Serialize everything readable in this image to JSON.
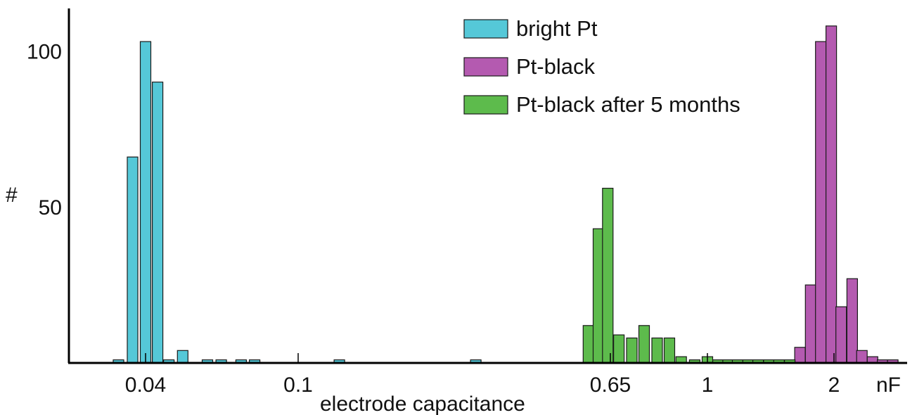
{
  "chart_data": {
    "type": "bar",
    "title": "",
    "xlabel": "electrode capacitance",
    "ylabel": "#",
    "x_unit": "nF",
    "x_scale": "log",
    "y_ticks": [
      50,
      100
    ],
    "ylim": [
      0,
      110
    ],
    "x_ticks": [
      {
        "value": 0.04,
        "label": "0.04"
      },
      {
        "value": 0.1,
        "label": "0.1"
      },
      {
        "value": 0.65,
        "label": "0.65"
      },
      {
        "value": 1,
        "label": "1"
      },
      {
        "value": 2,
        "label": "2"
      }
    ],
    "legend_position": "top-right",
    "grid": false,
    "series": [
      {
        "name": "bright Pt",
        "color": "#55c8d8",
        "x": [
          0.034,
          0.037,
          0.04,
          0.043,
          0.046,
          0.05,
          0.058,
          0.063,
          0.071,
          0.077,
          0.128,
          0.29
        ],
        "values": [
          1,
          66,
          103,
          90,
          1,
          4,
          1,
          1,
          1,
          1,
          1,
          1
        ]
      },
      {
        "name": "Pt-black",
        "color": "#b45ab0",
        "x": [
          1.66,
          1.76,
          1.86,
          1.97,
          2.08,
          2.21,
          2.33,
          2.47,
          2.61,
          2.76
        ],
        "values": [
          5,
          25,
          103,
          108,
          18,
          27,
          4,
          2,
          1,
          1
        ]
      },
      {
        "name": "Pt-black after 5 months",
        "color": "#5dbb4c",
        "x": [
          0.57,
          0.605,
          0.64,
          0.675,
          0.715,
          0.755,
          0.8,
          0.845,
          0.89,
          0.945,
          1.0,
          1.06,
          1.12,
          1.18,
          1.25,
          1.32,
          1.4,
          1.48,
          1.57
        ],
        "values": [
          12,
          43,
          56,
          9,
          8,
          12,
          8,
          8,
          2,
          1,
          2,
          1,
          1,
          1,
          1,
          1,
          1,
          1,
          1
        ]
      }
    ]
  }
}
